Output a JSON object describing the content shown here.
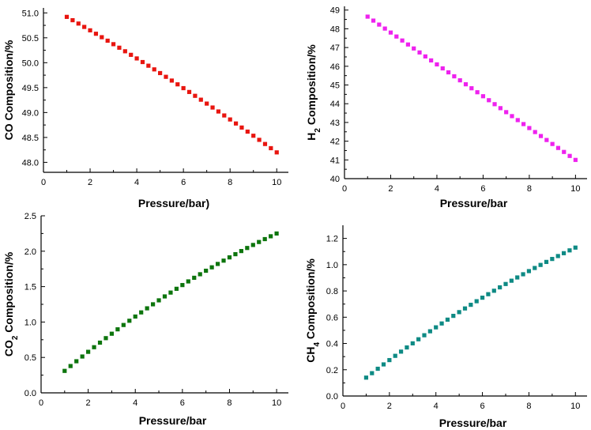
{
  "chart_data": [
    {
      "type": "scatter",
      "id": "co",
      "xlabel": "Pressure/bar)",
      "ylabel": "CO Composition/%",
      "ylabel_parts": [
        {
          "t": "CO Composition/%",
          "sub": false
        }
      ],
      "color": "#e8150f",
      "xlim": [
        0,
        10.5
      ],
      "ylim": [
        47.8,
        51.1
      ],
      "xticks": [
        0,
        2,
        4,
        6,
        8,
        10
      ],
      "yticks": [
        48.0,
        48.5,
        49.0,
        49.5,
        50.0,
        50.5,
        51.0
      ],
      "ytick_decimals": 1,
      "x_start": 1,
      "x_end": 10,
      "n_points": 37,
      "y_start": 50.92,
      "y_end": 48.2,
      "curve": -0.12
    },
    {
      "type": "scatter",
      "id": "h2",
      "xlabel": "Pressure/bar",
      "ylabel": "H2 Composition/%",
      "ylabel_parts": [
        {
          "t": "H",
          "sub": false
        },
        {
          "t": "2",
          "sub": true
        },
        {
          "t": " Composition/%",
          "sub": false
        }
      ],
      "color": "#ee22ee",
      "xlim": [
        0,
        10.5
      ],
      "ylim": [
        40,
        49.2
      ],
      "xticks": [
        0,
        2,
        4,
        6,
        8,
        10
      ],
      "yticks": [
        40,
        41,
        42,
        43,
        44,
        45,
        46,
        47,
        48,
        49
      ],
      "ytick_decimals": 0,
      "x_start": 1,
      "x_end": 10,
      "n_points": 37,
      "y_start": 48.65,
      "y_end": 41.0,
      "curve": 0.0
    },
    {
      "type": "scatter",
      "id": "co2",
      "xlabel": "Pressure/bar",
      "ylabel": "CO2 Composition/%",
      "ylabel_parts": [
        {
          "t": "CO",
          "sub": false
        },
        {
          "t": "2",
          "sub": true
        },
        {
          "t": " Composition/%",
          "sub": false
        }
      ],
      "color": "#0d750d",
      "xlim": [
        0,
        10.5
      ],
      "ylim": [
        0,
        2.5
      ],
      "xticks": [
        0,
        2,
        4,
        6,
        8,
        10
      ],
      "yticks": [
        0.0,
        0.5,
        1.0,
        1.5,
        2.0,
        2.5
      ],
      "ytick_decimals": 1,
      "x_start": 1,
      "x_end": 10,
      "n_points": 37,
      "y_start": 0.31,
      "y_end": 2.25,
      "curve": 0.28
    },
    {
      "type": "scatter",
      "id": "ch4",
      "xlabel": "Pressure/bar",
      "ylabel": "CH4 Composition/%",
      "ylabel_parts": [
        {
          "t": "CH",
          "sub": false
        },
        {
          "t": "4",
          "sub": true
        },
        {
          "t": " Composition/%",
          "sub": false
        }
      ],
      "color": "#0e8a84",
      "xlim": [
        0,
        10.5
      ],
      "ylim": [
        0,
        1.3
      ],
      "xticks": [
        0,
        2,
        4,
        6,
        8,
        10
      ],
      "yticks": [
        0.0,
        0.2,
        0.4,
        0.6,
        0.8,
        1.0,
        1.2
      ],
      "ytick_decimals": 1,
      "x_start": 1,
      "x_end": 10,
      "n_points": 37,
      "y_start": 0.14,
      "y_end": 1.13,
      "curve": 0.24
    }
  ]
}
